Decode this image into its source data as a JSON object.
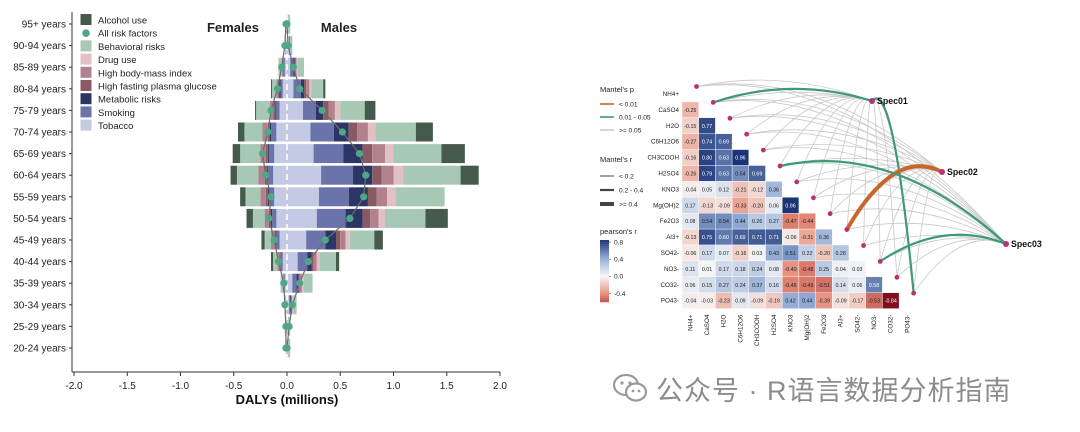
{
  "chart_data": [
    {
      "type": "bar",
      "subtype": "pyramid-stacked-bar",
      "title_left": "Females",
      "title_right": "Males",
      "xlabel": "DALYs (millions)",
      "xlim": [
        -2.0,
        2.0
      ],
      "xticks": [
        "-2.0",
        "-1.5",
        "-1.0",
        "-0.5",
        "0.0",
        "0.5",
        "1.0",
        "1.5",
        "2.0"
      ],
      "xtick_values": [
        -2.0,
        -1.5,
        -1.0,
        -0.5,
        0.0,
        0.5,
        1.0,
        1.5,
        2.0
      ],
      "categories": [
        "95+ years",
        "90-94 years",
        "85-89 years",
        "80-84 years",
        "75-79 years",
        "70-74 years",
        "65-69 years",
        "60-64 years",
        "55-59 years",
        "50-54 years",
        "45-49 years",
        "40-44 years",
        "35-39 years",
        "30-34 years",
        "25-29 years",
        "20-24 years"
      ],
      "legend": [
        {
          "name": "Alcohol use",
          "color": "#455a4b",
          "marker": "square"
        },
        {
          "name": "All risk factors",
          "color": "#4ea887",
          "marker": "dot"
        },
        {
          "name": "Behavioral risks",
          "color": "#a7c8b4",
          "marker": "square"
        },
        {
          "name": "Drug use",
          "color": "#e3bfc6",
          "marker": "square"
        },
        {
          "name": "High body-mass index",
          "color": "#b1828d",
          "marker": "square"
        },
        {
          "name": "High fasting plasma glucose",
          "color": "#8a5a64",
          "marker": "square"
        },
        {
          "name": "Metabolic risks",
          "color": "#2c3566",
          "marker": "square"
        },
        {
          "name": "Smoking",
          "color": "#6b73ab",
          "marker": "square"
        },
        {
          "name": "Tobacco",
          "color": "#c4cae3",
          "marker": "square"
        }
      ],
      "stack_order": [
        "Tobacco",
        "Smoking",
        "Metabolic risks",
        "High fasting plasma glucose",
        "High body-mass index",
        "Drug use",
        "Behavioral risks",
        "Alcohol use"
      ],
      "female_series": {
        "Tobacco": [
          0.0,
          0.01,
          0.02,
          0.04,
          0.07,
          0.1,
          0.12,
          0.13,
          0.12,
          0.1,
          0.07,
          0.04,
          0.02,
          0.01,
          0.01,
          0.0
        ],
        "Smoking": [
          0.0,
          0.0,
          0.01,
          0.02,
          0.03,
          0.05,
          0.05,
          0.05,
          0.05,
          0.04,
          0.03,
          0.02,
          0.01,
          0.0,
          0.0,
          0.0
        ],
        "Metabolic risks": [
          0.0,
          0.0,
          0.0,
          0.01,
          0.01,
          0.01,
          0.01,
          0.01,
          0.01,
          0.01,
          0.01,
          0.0,
          0.0,
          0.0,
          0.0,
          0.0
        ],
        "High fasting plasma glucose": [
          0.0,
          0.0,
          0.01,
          0.01,
          0.02,
          0.02,
          0.02,
          0.02,
          0.02,
          0.02,
          0.01,
          0.01,
          0.0,
          0.0,
          0.0,
          0.0
        ],
        "High body-mass index": [
          0.0,
          0.0,
          0.01,
          0.02,
          0.03,
          0.05,
          0.05,
          0.06,
          0.05,
          0.04,
          0.03,
          0.02,
          0.01,
          0.0,
          0.0,
          0.0
        ],
        "Drug use": [
          0.0,
          0.0,
          0.0,
          0.0,
          0.0,
          0.0,
          0.0,
          0.0,
          0.0,
          0.0,
          0.0,
          0.0,
          0.0,
          0.0,
          0.0,
          0.0
        ],
        "Behavioral risks": [
          0.01,
          0.01,
          0.03,
          0.04,
          0.13,
          0.17,
          0.19,
          0.2,
          0.14,
          0.11,
          0.06,
          0.04,
          0.02,
          0.01,
          0.01,
          0.01
        ],
        "Alcohol use": [
          0.0,
          0.0,
          0.0,
          0.01,
          0.01,
          0.06,
          0.07,
          0.06,
          0.05,
          0.06,
          0.03,
          0.02,
          0.0,
          0.0,
          0.0,
          0.0
        ]
      },
      "male_series": {
        "Tobacco": [
          0.01,
          0.02,
          0.03,
          0.06,
          0.15,
          0.22,
          0.25,
          0.32,
          0.3,
          0.28,
          0.18,
          0.1,
          0.05,
          0.02,
          0.01,
          0.01
        ],
        "Smoking": [
          0.0,
          0.01,
          0.03,
          0.07,
          0.12,
          0.22,
          0.28,
          0.3,
          0.28,
          0.27,
          0.18,
          0.09,
          0.04,
          0.01,
          0.0,
          0.0
        ],
        "Metabolic risks": [
          0.0,
          0.0,
          0.01,
          0.03,
          0.07,
          0.14,
          0.18,
          0.18,
          0.18,
          0.16,
          0.1,
          0.04,
          0.02,
          0.01,
          0.0,
          0.0
        ],
        "High fasting plasma glucose": [
          0.0,
          0.0,
          0.01,
          0.02,
          0.05,
          0.08,
          0.09,
          0.09,
          0.08,
          0.07,
          0.04,
          0.02,
          0.01,
          0.0,
          0.0,
          0.0
        ],
        "High body-mass index": [
          0.0,
          0.0,
          0.01,
          0.03,
          0.06,
          0.1,
          0.12,
          0.11,
          0.1,
          0.08,
          0.05,
          0.03,
          0.02,
          0.01,
          0.0,
          0.0
        ],
        "Drug use": [
          0.0,
          0.0,
          0.01,
          0.02,
          0.05,
          0.07,
          0.08,
          0.09,
          0.08,
          0.06,
          0.04,
          0.03,
          0.02,
          0.01,
          0.0,
          0.0
        ],
        "Behavioral risks": [
          0.02,
          0.02,
          0.06,
          0.11,
          0.23,
          0.38,
          0.45,
          0.54,
          0.46,
          0.38,
          0.23,
          0.15,
          0.08,
          0.03,
          0.02,
          0.02
        ],
        "Alcohol use": [
          0.0,
          0.0,
          0.0,
          0.02,
          0.1,
          0.16,
          0.22,
          0.17,
          0.0,
          0.21,
          0.08,
          0.03,
          0.0,
          0.0,
          0.0,
          0.0
        ]
      },
      "all_risk_factors": {
        "female": [
          -0.01,
          -0.02,
          -0.05,
          -0.09,
          -0.15,
          -0.18,
          -0.23,
          -0.2,
          -0.15,
          -0.17,
          -0.12,
          -0.08,
          -0.03,
          -0.02,
          -0.01,
          -0.01
        ],
        "male": [
          0.0,
          0.01,
          0.06,
          0.12,
          0.33,
          0.52,
          0.68,
          0.74,
          0.72,
          0.59,
          0.36,
          0.2,
          0.12,
          0.05,
          0.02,
          0.0
        ]
      }
    },
    {
      "type": "heatmap",
      "subtype": "mantel-correlation",
      "variables": [
        "NH4+",
        "CaSO4",
        "H2O",
        "C6H12O6",
        "CH3COOH",
        "H2SO4",
        "KNO3",
        "Mg(OH)2",
        "Fe2O3",
        "Al3+",
        "SO42-",
        "NO3-",
        "CO32-",
        "PO43-"
      ],
      "variable_labels_html": [
        "NH<tspan baseline-shift='sub' font-size='4.5'>4</tspan><tspan baseline-shift='super' font-size='4.5'>+</tspan>"
      ],
      "correlations": [
        [
          -0.25
        ],
        [
          -0.15,
          0.77
        ],
        [
          -0.27,
          0.74,
          0.69
        ],
        [
          -0.16,
          0.8,
          0.63,
          0.96
        ],
        [
          -0.26,
          0.79,
          0.63,
          0.54,
          0.69
        ],
        [
          -0.04,
          0.05,
          0.12,
          -0.21,
          -0.12,
          0.36
        ],
        [
          0.17,
          -0.13,
          -0.09,
          -0.33,
          -0.2,
          0.06,
          0.96
        ],
        [
          0.08,
          0.54,
          0.54,
          0.44,
          0.26,
          0.27,
          -0.47,
          -0.44
        ],
        [
          -0.13,
          0.75,
          0.6,
          0.69,
          0.71,
          0.71,
          -0.06,
          -0.31,
          0.36
        ],
        [
          -0.06,
          0.17,
          0.07,
          -0.16,
          0.03,
          0.43,
          0.51,
          0.22,
          -0.2,
          0.28
        ],
        [
          0.11,
          0.01,
          0.17,
          0.18,
          0.24,
          0.08,
          -0.4,
          -0.48,
          0.25,
          0.04,
          0.03
        ],
        [
          0.06,
          0.15,
          0.27,
          0.24,
          0.37,
          0.16,
          -0.46,
          -0.49,
          -0.51,
          0.14,
          0.06,
          0.58
        ],
        [
          -0.04,
          -0.03,
          -0.23,
          0.09,
          -0.09,
          -0.19,
          0.42,
          0.44,
          -0.39,
          -0.09,
          -0.17,
          -0.53,
          -0.84
        ]
      ],
      "colorbar": {
        "title": "pearson's r",
        "ticks": [
          "0.8",
          "0.4",
          "0.0",
          "-0.4"
        ],
        "tick_values": [
          0.8,
          0.4,
          0.0,
          -0.4
        ]
      },
      "legend_p": {
        "title": "Mantel's p",
        "items": [
          {
            "label": "< 0.01",
            "color": "#c8652b"
          },
          {
            "label": "0.01 - 0.05",
            "color": "#3f9a74"
          },
          {
            "label": ">= 0.05",
            "color": "#cccccc"
          }
        ]
      },
      "legend_r": {
        "title": "Mantel's r",
        "items": [
          {
            "label": "< 0.2",
            "width": 1
          },
          {
            "label": "0.2 - 0.4",
            "width": 2.2
          },
          {
            "label": ">= 0.4",
            "width": 4
          }
        ]
      },
      "species": [
        "Spec01",
        "Spec02",
        "Spec03"
      ],
      "links": {
        "Spec01": {
          "strong": [
            1,
            13
          ],
          "p_class": "0.01-0.05"
        },
        "Spec02": {
          "strong": [
            9
          ],
          "p_class": "<0.01"
        },
        "Spec03": {
          "strong": [
            5,
            11
          ],
          "p_class": "0.01-0.05"
        }
      }
    }
  ],
  "watermark": {
    "text": "公众号 · R语言数据分析指南"
  }
}
